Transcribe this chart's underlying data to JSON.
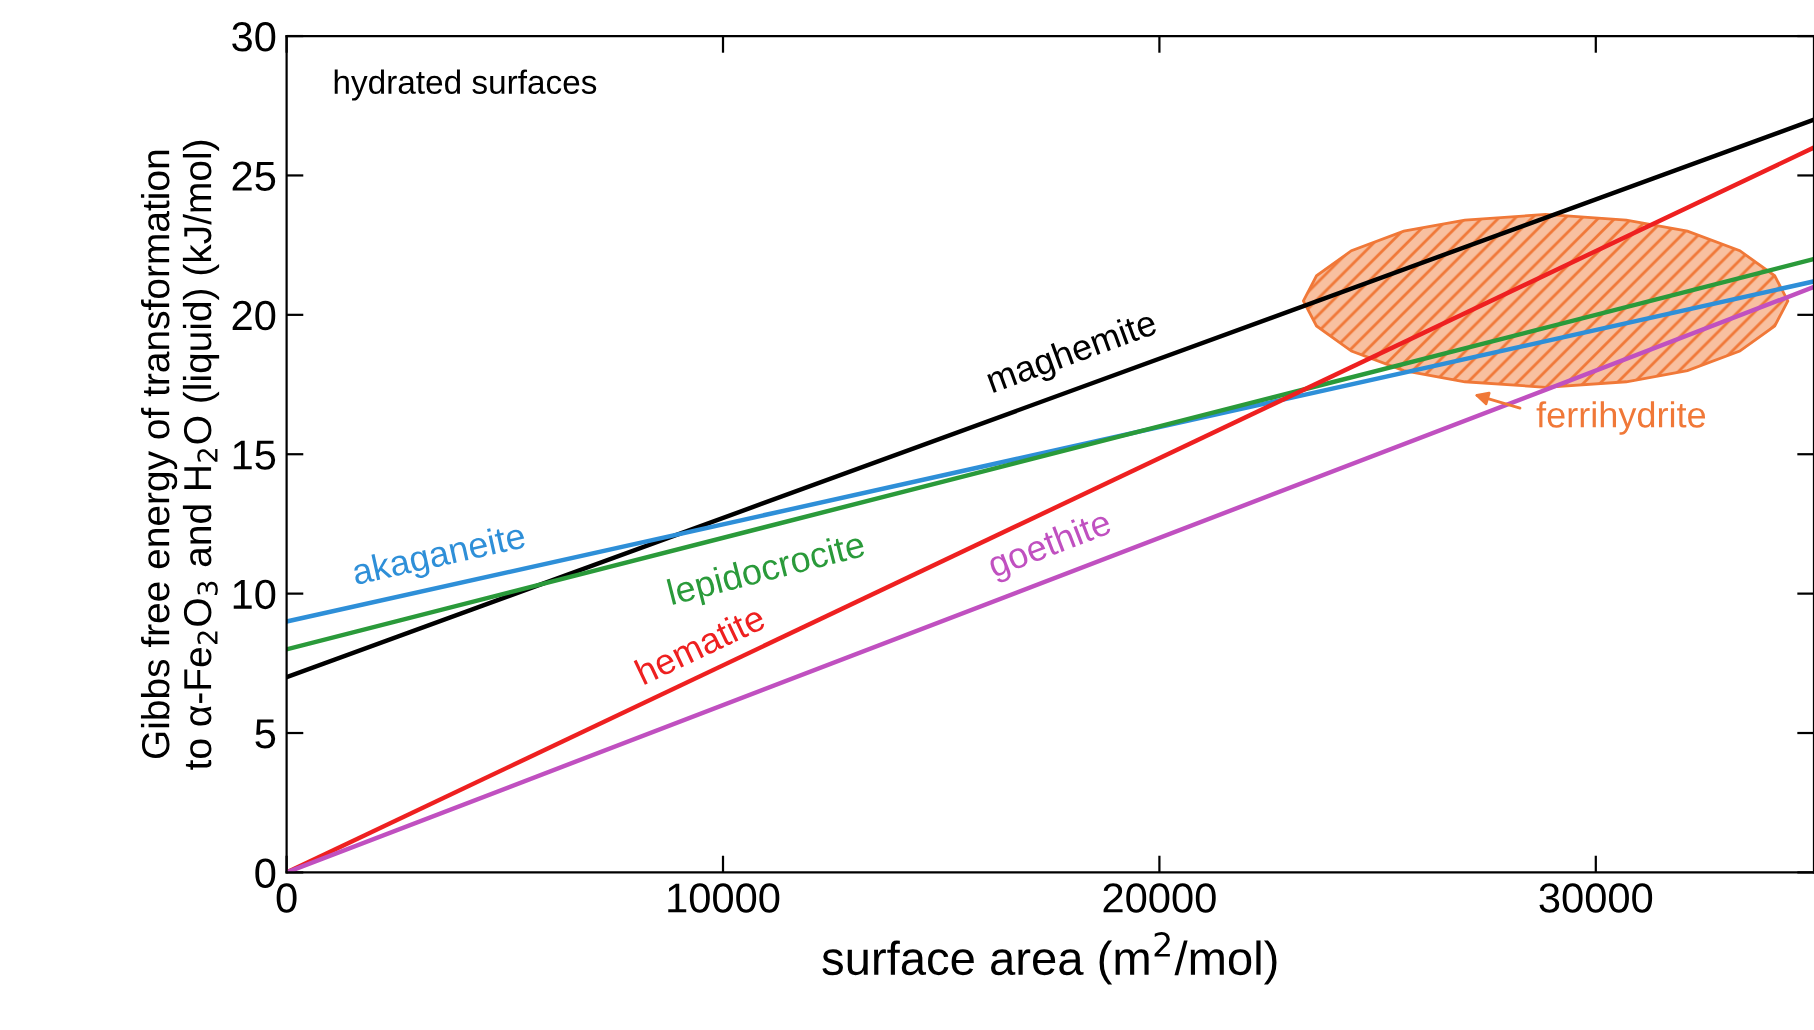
{
  "chart_data": {
    "type": "line",
    "xlabel": "surface area (m$^{2}$/mol)",
    "ylabel": "Gibbs free energy of transformation\nto α-Fe$_{2}$O$_{3}$ and H$_{2}$O (liquid) (kJ/mol)",
    "xlim": [
      0,
      35000
    ],
    "ylim": [
      0,
      30
    ],
    "xticks": [
      0,
      10000,
      20000,
      30000
    ],
    "yticks": [
      0,
      5,
      10,
      15,
      20,
      25,
      30
    ],
    "grid": false,
    "legend": false,
    "marker": "none",
    "line_style": "solid",
    "series": [
      {
        "name": "maghemite",
        "color": "#000000",
        "x": [
          0,
          35000
        ],
        "values": [
          7,
          27
        ]
      },
      {
        "name": "akaganeite",
        "color": "#2e8fd8",
        "x": [
          0,
          35000
        ],
        "values": [
          9,
          21.2
        ]
      },
      {
        "name": "lepidocrocite",
        "color": "#2a9a3a",
        "x": [
          0,
          35000
        ],
        "values": [
          8,
          22
        ]
      },
      {
        "name": "hematite",
        "color": "#ee2020",
        "x": [
          0,
          35000
        ],
        "values": [
          0,
          26
        ]
      },
      {
        "name": "goethite",
        "color": "#c050c0",
        "x": [
          0,
          35000
        ],
        "values": [
          0,
          21
        ]
      },
      {
        "name": "ferrihydrite",
        "type": "area",
        "color": "#f07838",
        "x": [
          23300,
          23600,
          24400,
          25600,
          27000,
          28850,
          30700,
          32100,
          33300,
          34100,
          34400,
          34100,
          33300,
          32100,
          30700,
          28850,
          27000,
          25600,
          24400,
          23600,
          23300
        ],
        "values": [
          20.5,
          21.4,
          22.3,
          23.0,
          23.4,
          23.6,
          23.4,
          23.0,
          22.3,
          21.4,
          20.5,
          19.6,
          18.7,
          18.0,
          17.6,
          17.4,
          17.6,
          18.0,
          18.7,
          19.6,
          20.5
        ]
      }
    ],
    "annotations": [
      "hydrated surfaces"
    ]
  }
}
